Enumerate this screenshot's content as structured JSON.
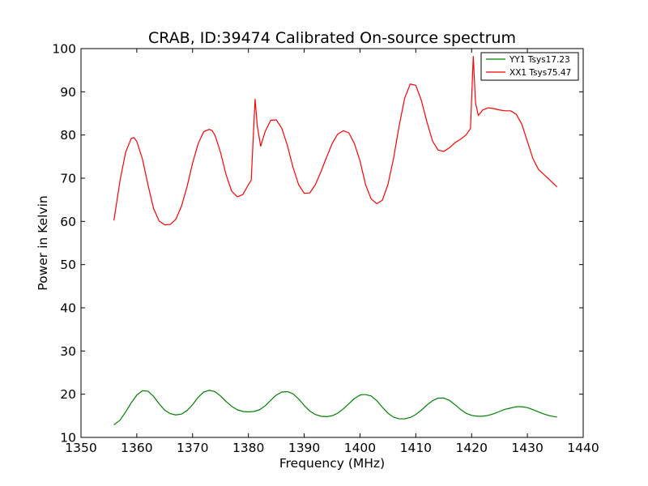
{
  "chart_data": {
    "type": "line",
    "title": "CRAB, ID:39474 Calibrated On-source spectrum",
    "xlabel": "Frequency (MHz)",
    "ylabel": "Power in Kelvin",
    "xlim": [
      1350,
      1440
    ],
    "ylim": [
      10,
      100
    ],
    "xticks": [
      1350,
      1360,
      1370,
      1380,
      1390,
      1400,
      1410,
      1420,
      1430,
      1440
    ],
    "yticks": [
      10,
      20,
      30,
      40,
      50,
      60,
      70,
      80,
      90,
      100
    ],
    "grid": false,
    "legend_position": "top-right",
    "series": [
      {
        "name": "YY1 Tsys17.23",
        "color": "#008000",
        "x": [
          1355.9,
          1357.0,
          1358.0,
          1359.0,
          1360.0,
          1361.0,
          1362.0,
          1363.0,
          1364.0,
          1365.0,
          1366.0,
          1367.0,
          1368.0,
          1369.0,
          1370.0,
          1371.0,
          1372.0,
          1373.0,
          1374.0,
          1375.0,
          1376.0,
          1377.0,
          1378.0,
          1379.0,
          1380.0,
          1381.0,
          1382.0,
          1383.0,
          1384.0,
          1385.0,
          1386.0,
          1387.0,
          1388.0,
          1389.0,
          1390.0,
          1391.0,
          1392.0,
          1393.0,
          1394.0,
          1395.0,
          1396.0,
          1397.0,
          1398.0,
          1399.0,
          1400.0,
          1400.5,
          1401.0,
          1402.0,
          1403.0,
          1404.0,
          1405.0,
          1406.0,
          1407.0,
          1408.0,
          1409.0,
          1410.0,
          1411.0,
          1412.0,
          1413.0,
          1414.0,
          1415.0,
          1416.0,
          1417.0,
          1418.0,
          1419.0,
          1420.0,
          1421.0,
          1422.0,
          1423.0,
          1424.0,
          1425.0,
          1426.0,
          1427.0,
          1428.0,
          1429.0,
          1430.0,
          1431.0,
          1432.0,
          1433.0,
          1434.0,
          1435.3
        ],
        "values": [
          12.9,
          14.0,
          15.9,
          18.0,
          19.8,
          20.8,
          20.7,
          19.5,
          17.8,
          16.3,
          15.5,
          15.2,
          15.4,
          16.2,
          17.6,
          19.3,
          20.5,
          20.9,
          20.6,
          19.6,
          18.3,
          17.2,
          16.4,
          16.0,
          15.9,
          16.0,
          16.4,
          17.3,
          18.6,
          19.8,
          20.5,
          20.6,
          20.1,
          18.9,
          17.4,
          16.1,
          15.3,
          14.9,
          14.8,
          15.0,
          15.6,
          16.6,
          17.8,
          19.0,
          19.8,
          19.9,
          19.9,
          19.6,
          18.5,
          17.0,
          15.6,
          14.7,
          14.3,
          14.3,
          14.6,
          15.3,
          16.3,
          17.5,
          18.5,
          19.1,
          19.1,
          18.6,
          17.6,
          16.5,
          15.6,
          15.1,
          14.9,
          14.9,
          15.1,
          15.5,
          16.0,
          16.5,
          16.8,
          17.1,
          17.1,
          16.9,
          16.4,
          15.9,
          15.4,
          15.0,
          14.7
        ]
      },
      {
        "name": "XX1 Tsys75.47",
        "color": "#ff0000",
        "x": [
          1355.9,
          1357.0,
          1358.0,
          1359.0,
          1359.5,
          1360.0,
          1361.0,
          1362.0,
          1363.0,
          1364.0,
          1365.0,
          1366.0,
          1367.0,
          1368.0,
          1369.0,
          1370.0,
          1371.0,
          1372.0,
          1373.0,
          1373.5,
          1374.0,
          1375.0,
          1376.0,
          1377.0,
          1378.0,
          1379.0,
          1380.0,
          1380.5,
          1381.2,
          1381.6,
          1382.2,
          1383.0,
          1384.0,
          1385.0,
          1386.0,
          1387.0,
          1388.0,
          1389.0,
          1390.0,
          1391.0,
          1392.0,
          1393.0,
          1394.0,
          1395.0,
          1396.0,
          1397.0,
          1398.0,
          1399.0,
          1400.0,
          1401.0,
          1402.0,
          1403.0,
          1404.0,
          1405.0,
          1406.0,
          1407.0,
          1408.0,
          1409.0,
          1410.0,
          1411.0,
          1412.0,
          1413.0,
          1414.0,
          1415.0,
          1416.0,
          1417.0,
          1418.0,
          1419.0,
          1419.8,
          1420.3,
          1420.7,
          1421.2,
          1422.0,
          1423.0,
          1424.0,
          1425.0,
          1426.0,
          1427.0,
          1428.0,
          1429.0,
          1430.0,
          1431.0,
          1432.0,
          1433.0,
          1434.0,
          1435.3
        ],
        "values": [
          60.2,
          69.5,
          76.0,
          79.2,
          79.4,
          78.5,
          74.5,
          68.5,
          63.0,
          60.1,
          59.2,
          59.3,
          60.5,
          63.5,
          68.0,
          73.5,
          78.0,
          80.8,
          81.3,
          81.0,
          80.0,
          76.0,
          70.8,
          67.0,
          65.7,
          66.2,
          68.5,
          69.5,
          88.3,
          82.0,
          77.4,
          80.8,
          83.4,
          83.5,
          81.5,
          77.5,
          72.5,
          68.5,
          66.5,
          66.6,
          68.5,
          71.5,
          74.8,
          78.0,
          80.2,
          81.0,
          80.5,
          78.0,
          74.0,
          68.5,
          65.2,
          64.1,
          64.9,
          68.5,
          74.5,
          82.0,
          88.5,
          91.8,
          91.5,
          88.0,
          83.0,
          78.6,
          76.5,
          76.2,
          77.0,
          78.2,
          79.0,
          80.0,
          81.5,
          98.2,
          87.5,
          84.5,
          85.8,
          86.3,
          86.1,
          85.8,
          85.6,
          85.6,
          84.8,
          82.5,
          78.5,
          74.5,
          72.0,
          70.8,
          69.6,
          68.0
        ]
      }
    ]
  }
}
